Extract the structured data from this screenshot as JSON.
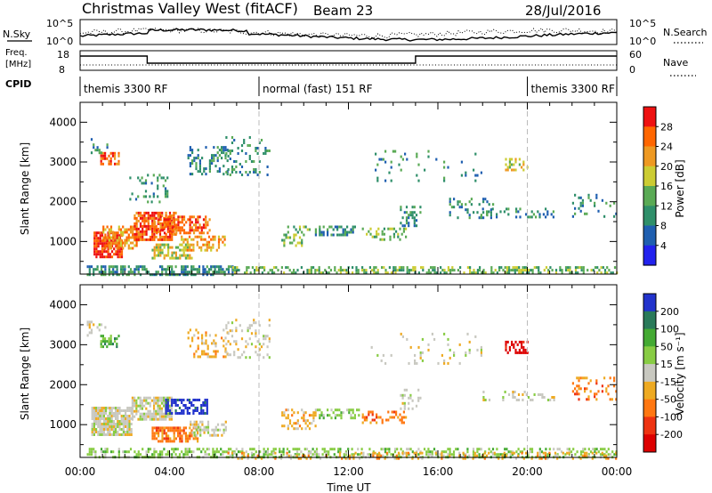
{
  "header": {
    "station": "Christmas Valley West (fitACF)",
    "beam": "Beam 23",
    "date": "28/Jul/2016"
  },
  "nsky_panel": {
    "label": "N.Sky",
    "left_ticks": [
      "10^5",
      "10^0"
    ],
    "right_ticks": [
      "10^5",
      "10^0"
    ],
    "right_label": "N.Search"
  },
  "freq_panel": {
    "label_line1": "Freq.",
    "label_line2": "[MHz]",
    "left_ticks": [
      "18",
      "8"
    ],
    "right_ticks": [
      "60",
      "0"
    ],
    "right_label": "Nave"
  },
  "cpid": {
    "label": "CPID",
    "segments": [
      {
        "text": "themis 3300 RF",
        "start_hr": 0,
        "end_hr": 8
      },
      {
        "text": "normal (fast) 151 RF",
        "start_hr": 8,
        "end_hr": 20
      },
      {
        "text": "themis 3300 RF",
        "start_hr": 20,
        "end_hr": 24
      }
    ]
  },
  "x_axis": {
    "label": "Time UT",
    "ticks": [
      "00:00",
      "04:00",
      "08:00",
      "12:00",
      "16:00",
      "20:00",
      "00:00"
    ],
    "tick_hours": [
      0,
      4,
      8,
      12,
      16,
      20,
      24
    ]
  },
  "chart_data": [
    {
      "type": "heatmap",
      "panel": "power",
      "ylabel": "Slant Range [km]",
      "ylim": [
        180,
        4500
      ],
      "yticks": [
        "1000",
        "2000",
        "3000",
        "4000"
      ],
      "ytick_values": [
        1000,
        2000,
        3000,
        4000
      ],
      "colorbar": {
        "label": "Power [dB]",
        "ticks": [
          "4",
          "8",
          "12",
          "16",
          "20",
          "24",
          "28"
        ],
        "colors": [
          "#2222ee",
          "#1f5fb0",
          "#2f8f6a",
          "#5aaa55",
          "#cccc33",
          "#ee9922",
          "#ff6600",
          "#ee1111"
        ]
      },
      "regions": [
        {
          "t0": 0.3,
          "t1": 6.8,
          "r0": 180,
          "r1": 400,
          "level": 2,
          "density": 0.55
        },
        {
          "t0": 6.8,
          "t1": 24,
          "r0": 180,
          "r1": 380,
          "level": 3,
          "density": 0.45
        },
        {
          "t0": 0.6,
          "t1": 1.9,
          "r0": 600,
          "r1": 1250,
          "level": 7,
          "density": 0.8
        },
        {
          "t0": 1.0,
          "t1": 2.6,
          "r0": 850,
          "r1": 1400,
          "level": 5,
          "density": 0.6
        },
        {
          "t0": 2.4,
          "t1": 4.3,
          "r0": 1050,
          "r1": 1750,
          "level": 6,
          "density": 0.8
        },
        {
          "t0": 3.3,
          "t1": 5.8,
          "r0": 1200,
          "r1": 1650,
          "level": 6,
          "density": 0.55
        },
        {
          "t0": 3.2,
          "t1": 5.0,
          "r0": 600,
          "r1": 950,
          "level": 4,
          "density": 0.55
        },
        {
          "t0": 4.5,
          "t1": 6.5,
          "r0": 750,
          "r1": 1150,
          "level": 5,
          "density": 0.5
        },
        {
          "t0": 0.9,
          "t1": 1.7,
          "r0": 2950,
          "r1": 3250,
          "level": 6,
          "density": 0.6
        },
        {
          "t0": 0.3,
          "t1": 1.2,
          "r0": 3200,
          "r1": 3600,
          "level": 2,
          "density": 0.2
        },
        {
          "t0": 2.2,
          "t1": 3.9,
          "r0": 2000,
          "r1": 2700,
          "level": 2,
          "density": 0.18
        },
        {
          "t0": 4.8,
          "t1": 6.6,
          "r0": 2700,
          "r1": 3400,
          "level": 2,
          "density": 0.3
        },
        {
          "t0": 6.5,
          "t1": 8.5,
          "r0": 2700,
          "r1": 3650,
          "level": 2,
          "density": 0.18
        },
        {
          "t0": 9.0,
          "t1": 10.3,
          "r0": 900,
          "r1": 1400,
          "level": 3,
          "density": 0.3
        },
        {
          "t0": 10.5,
          "t1": 12.3,
          "r0": 1150,
          "r1": 1400,
          "level": 2,
          "density": 0.5
        },
        {
          "t0": 12.6,
          "t1": 14.6,
          "r0": 1050,
          "r1": 1350,
          "level": 3,
          "density": 0.35
        },
        {
          "t0": 14.3,
          "t1": 15.2,
          "r0": 1400,
          "r1": 1900,
          "level": 2,
          "density": 0.35
        },
        {
          "t0": 16.5,
          "t1": 18.5,
          "r0": 1600,
          "r1": 2100,
          "level": 2,
          "density": 0.2
        },
        {
          "t0": 17.8,
          "t1": 21.2,
          "r0": 1600,
          "r1": 1850,
          "level": 2,
          "density": 0.25
        },
        {
          "t0": 19.0,
          "t1": 20.0,
          "r0": 2800,
          "r1": 3100,
          "level": 4,
          "density": 0.45
        },
        {
          "t0": 22.0,
          "t1": 24.0,
          "r0": 1600,
          "r1": 2200,
          "level": 2,
          "density": 0.2
        },
        {
          "t0": 13.0,
          "t1": 18.0,
          "r0": 2500,
          "r1": 3300,
          "level": 2,
          "density": 0.06
        }
      ]
    },
    {
      "type": "heatmap",
      "panel": "velocity",
      "ylabel": "Slant Range [km]",
      "ylim": [
        180,
        4500
      ],
      "yticks": [
        "1000",
        "2000",
        "3000",
        "4000"
      ],
      "ytick_values": [
        1000,
        2000,
        3000,
        4000
      ],
      "colorbar": {
        "label": "Velocity [m s⁻¹]",
        "ticks": [
          "200",
          "100",
          "50",
          "15",
          "-15",
          "-50",
          "-100",
          "-200"
        ],
        "colors": [
          "#2233cc",
          "#2a7a5a",
          "#44aa33",
          "#88cc44",
          "#c8c8c0",
          "#eeaa22",
          "#ff7711",
          "#ee3311",
          "#dd0000"
        ]
      },
      "regions": [
        {
          "t0": 0.3,
          "t1": 24,
          "r0": 180,
          "r1": 420,
          "level": 3,
          "density": 0.45
        },
        {
          "t0": 6.5,
          "t1": 24,
          "r0": 180,
          "r1": 320,
          "level": 5,
          "density": 0.25
        },
        {
          "t0": 0.5,
          "t1": 2.3,
          "r0": 750,
          "r1": 1450,
          "level": 4,
          "density": 0.85
        },
        {
          "t0": 2.3,
          "t1": 4.1,
          "r0": 1150,
          "r1": 1700,
          "level": 4,
          "density": 0.8
        },
        {
          "t0": 3.8,
          "t1": 5.7,
          "r0": 1250,
          "r1": 1650,
          "level": 0,
          "density": 0.6
        },
        {
          "t0": 3.2,
          "t1": 5.3,
          "r0": 600,
          "r1": 950,
          "level": 6,
          "density": 0.6
        },
        {
          "t0": 4.9,
          "t1": 6.5,
          "r0": 750,
          "r1": 1100,
          "level": 4,
          "density": 0.5
        },
        {
          "t0": 0.9,
          "t1": 1.7,
          "r0": 2950,
          "r1": 3250,
          "level": 2,
          "density": 0.6
        },
        {
          "t0": 0.3,
          "t1": 1.2,
          "r0": 3200,
          "r1": 3600,
          "level": 4,
          "density": 0.2
        },
        {
          "t0": 4.8,
          "t1": 6.6,
          "r0": 2700,
          "r1": 3400,
          "level": 5,
          "density": 0.25
        },
        {
          "t0": 6.5,
          "t1": 8.5,
          "r0": 2700,
          "r1": 3650,
          "level": 4,
          "density": 0.2
        },
        {
          "t0": 9.0,
          "t1": 10.5,
          "r0": 900,
          "r1": 1400,
          "level": 5,
          "density": 0.35
        },
        {
          "t0": 10.5,
          "t1": 12.5,
          "r0": 1150,
          "r1": 1400,
          "level": 3,
          "density": 0.45
        },
        {
          "t0": 12.6,
          "t1": 14.6,
          "r0": 1050,
          "r1": 1350,
          "level": 6,
          "density": 0.35
        },
        {
          "t0": 14.3,
          "t1": 15.2,
          "r0": 1400,
          "r1": 1900,
          "level": 4,
          "density": 0.3
        },
        {
          "t0": 18.0,
          "t1": 21.2,
          "r0": 1600,
          "r1": 1850,
          "level": 4,
          "density": 0.25
        },
        {
          "t0": 19.0,
          "t1": 20.0,
          "r0": 2800,
          "r1": 3100,
          "level": 8,
          "density": 0.5
        },
        {
          "t0": 22.0,
          "t1": 24.0,
          "r0": 1600,
          "r1": 2200,
          "level": 6,
          "density": 0.2
        },
        {
          "t0": 13.0,
          "t1": 18.0,
          "r0": 2500,
          "r1": 3300,
          "level": 4,
          "density": 0.06
        }
      ]
    }
  ],
  "colors": {
    "grid_dashed": "#bbbbbb",
    "axes": "#000000"
  }
}
